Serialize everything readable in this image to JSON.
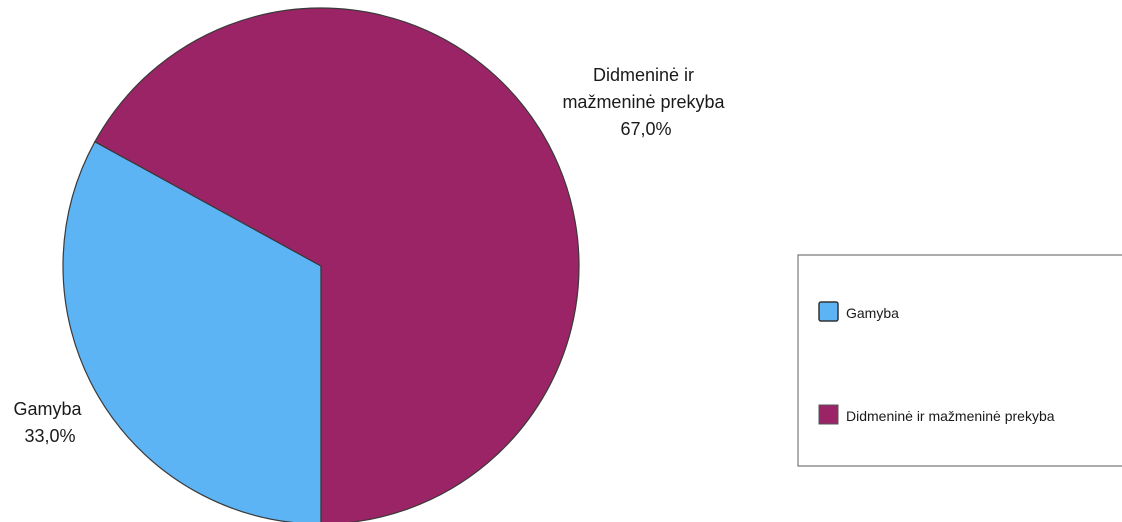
{
  "chart_data": {
    "type": "pie",
    "title": "",
    "slices": [
      {
        "label": "Gamyba",
        "value": 33.0,
        "value_label": "33,0%",
        "color": "#5db4f5"
      },
      {
        "label": "Didmeninė ir mažmeninė prekyba",
        "value": 67.0,
        "value_label": "67,0%",
        "color": "#9b2466"
      }
    ],
    "data_labels": [
      {
        "lines": [
          "Gamyba",
          "33,0%"
        ]
      },
      {
        "lines": [
          "Didmeninė ir",
          "mažmeninė prekyba",
          "67,0%"
        ]
      }
    ],
    "legend": {
      "position": "right",
      "entries": [
        "Gamyba",
        "Didmeninė ir mažmeninė prekyba"
      ]
    }
  }
}
